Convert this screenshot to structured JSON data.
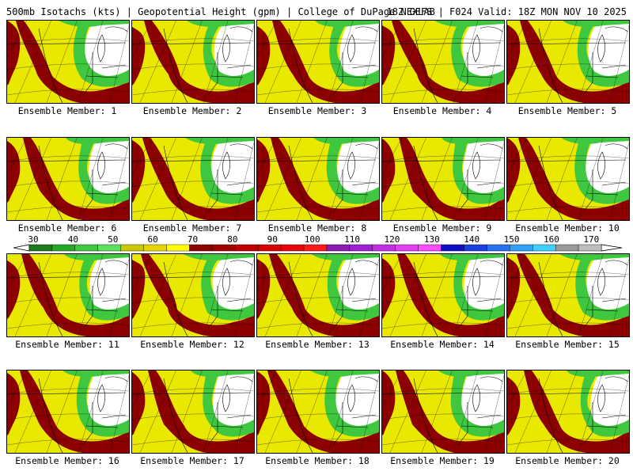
{
  "header": {
    "title": "500mb Isotachs (kts) | Geopotential Height (gpm) | College of DuPage NEXLAB",
    "run": "18Z GEFS | F024 Valid: 18Z MON NOV 10 2025"
  },
  "colorbar": {
    "ticks": [
      "30",
      "40",
      "50",
      "60",
      "70",
      "80",
      "90",
      "100",
      "110",
      "120",
      "130",
      "140",
      "150",
      "160",
      "170"
    ],
    "colors": [
      "#1e7a1e",
      "#26a626",
      "#3fc83f",
      "#5ee05e",
      "#c8c800",
      "#e6d400",
      "#ffff00",
      "#8c0000",
      "#a30000",
      "#bf0000",
      "#d40000",
      "#e8000a",
      "#ff1a1a",
      "#8b1ab0",
      "#a020d0",
      "#c030e0",
      "#e040f0",
      "#ff4cff",
      "#1010c0",
      "#1a40e0",
      "#2a70f0",
      "#30a0f8",
      "#40d0ff",
      "#9a9a9a",
      "#bdbdbd"
    ]
  },
  "map_colors": {
    "background": "#e8e800",
    "strong": "#8c0000",
    "weak": "#3fc83f",
    "low": "#ffffff"
  },
  "members": [
    {
      "label": "Ensemble Member: 1"
    },
    {
      "label": "Ensemble Member: 2"
    },
    {
      "label": "Ensemble Member: 3"
    },
    {
      "label": "Ensemble Member: 4"
    },
    {
      "label": "Ensemble Member: 5"
    },
    {
      "label": "Ensemble Member: 6"
    },
    {
      "label": "Ensemble Member: 7"
    },
    {
      "label": "Ensemble Member: 8"
    },
    {
      "label": "Ensemble Member: 9"
    },
    {
      "label": "Ensemble Member: 10"
    },
    {
      "label": "Ensemble Member: 11"
    },
    {
      "label": "Ensemble Member: 12"
    },
    {
      "label": "Ensemble Member: 13"
    },
    {
      "label": "Ensemble Member: 14"
    },
    {
      "label": "Ensemble Member: 15"
    },
    {
      "label": "Ensemble Member: 16"
    },
    {
      "label": "Ensemble Member: 17"
    },
    {
      "label": "Ensemble Member: 18"
    },
    {
      "label": "Ensemble Member: 19"
    },
    {
      "label": "Ensemble Member: 20"
    }
  ]
}
